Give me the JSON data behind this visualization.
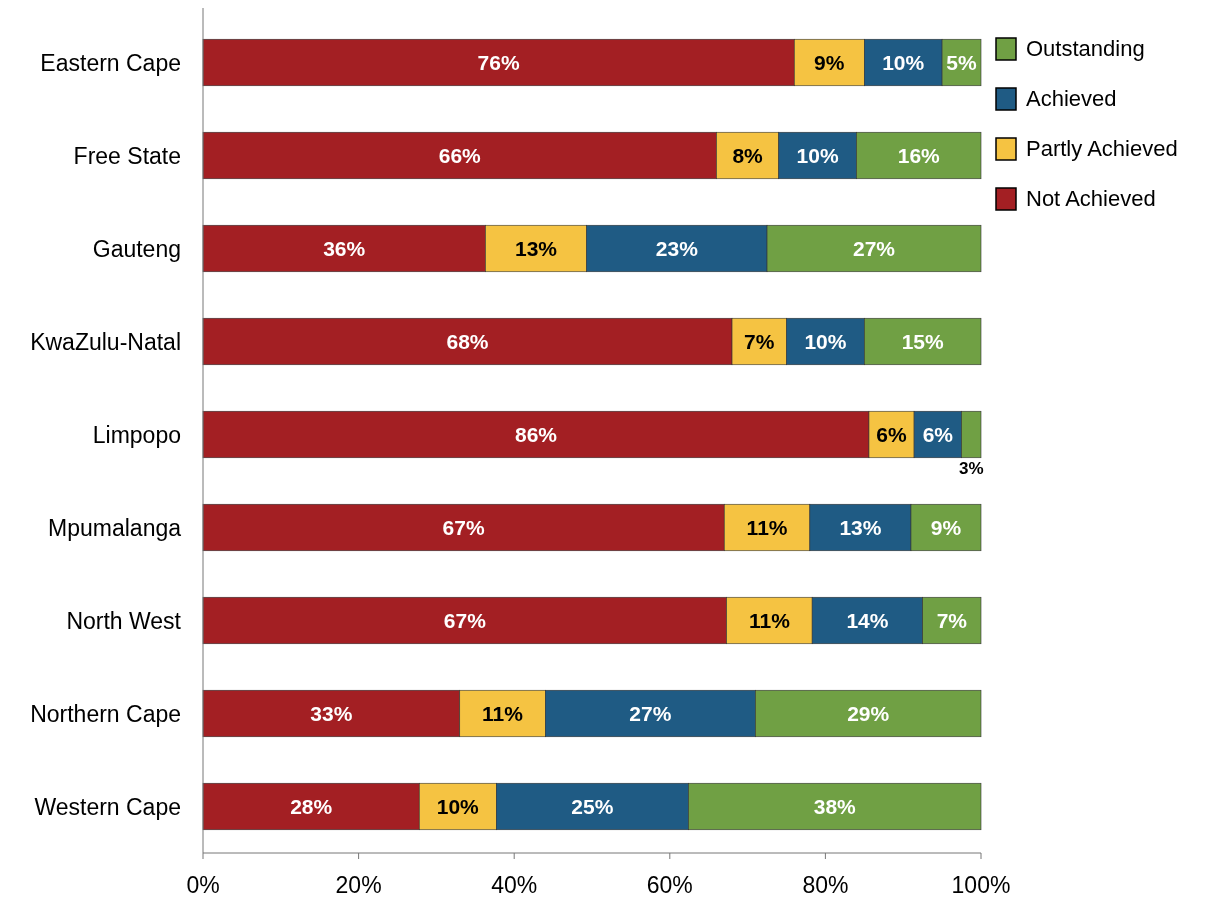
{
  "chart_data": {
    "type": "bar",
    "orientation": "horizontal",
    "stacked": true,
    "legend": "right",
    "categories": [
      "Eastern Cape",
      "Free State",
      "Gauteng",
      "KwaZulu-Natal",
      "Limpopo",
      "Mpumalanga",
      "North West",
      "Northern Cape",
      "Western Cape"
    ],
    "xlim": [
      0,
      100
    ],
    "xticks": [
      {
        "value": 0,
        "label": "0%"
      },
      {
        "value": 20,
        "label": "20%"
      },
      {
        "value": 40,
        "label": "40%"
      },
      {
        "value": 60,
        "label": "60%"
      },
      {
        "value": 80,
        "label": "80%"
      },
      {
        "value": 100,
        "label": "100%"
      }
    ],
    "series": [
      {
        "name": "Not Achieved",
        "color": "#a31f23",
        "values": [
          76,
          66,
          36.3,
          68,
          85.6,
          67,
          67.3,
          33,
          27.8
        ],
        "value_labels": [
          "76%",
          "66%",
          "36%",
          "68%",
          "86%",
          "67%",
          "67%",
          "33%",
          "28%"
        ]
      },
      {
        "name": "Partly Achieved",
        "color": "#f5c342",
        "values": [
          9,
          8,
          13,
          7,
          5.8,
          11,
          11,
          11,
          9.9
        ],
        "value_labels": [
          "9%",
          "8%",
          "13%",
          "7%",
          "6%",
          "11%",
          "11%",
          "11%",
          "10%"
        ]
      },
      {
        "name": "Achieved",
        "color": "#1f5b84",
        "values": [
          10,
          10,
          23.2,
          10,
          6.1,
          13,
          14.2,
          27,
          24.7
        ],
        "value_labels": [
          "10%",
          "10%",
          "23%",
          "10%",
          "6%",
          "13%",
          "14%",
          "27%",
          "25%"
        ]
      },
      {
        "name": "Outstanding",
        "color": "#70a044",
        "values": [
          5,
          16,
          27.5,
          15,
          2.5,
          9,
          7.5,
          29,
          37.6
        ],
        "value_labels": [
          "5%",
          "16%",
          "27%",
          "15%",
          "3%",
          "9%",
          "7%",
          "29%",
          "38%"
        ]
      }
    ]
  }
}
